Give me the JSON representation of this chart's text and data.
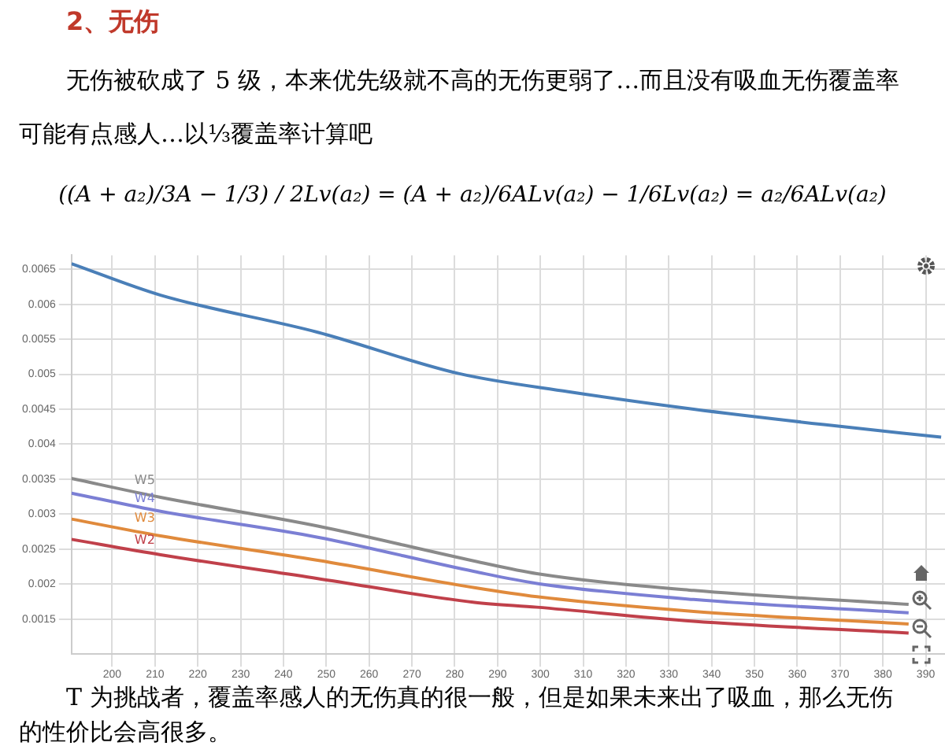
{
  "chart_data": {
    "type": "line",
    "title": "2、无伤",
    "annotations": [
      "无伤被砍成了 5 级，本来优先级就不高的无伤更弱了…而且没有吸血无伤覆盖率可能有点感人…以⅓覆盖率计算吧",
      "((A + a₂)/3A − 1/3) / 2Lv(a₂) = (A + a₂)/6ALv(a₂) − 1/6Lv(a₂) = a₂/6ALv(a₂)",
      "T 为挑战者，覆盖率感人的无伤真的很一般，但是如果未来出了吸血，那么无伤的性价比会高很多。"
    ],
    "x": [
      190.5,
      211.3,
      248.0,
      284.6,
      299.2,
      335.8,
      386.0
    ],
    "series": [
      {
        "color": "#4a7fb8",
        "x": [
          190.5,
          211.3,
          248.0,
          280.9,
          306.5,
          335.8,
          366.2,
          393.6
        ],
        "values": [
          0.00658,
          0.00613,
          0.0056,
          0.00501,
          0.00475,
          0.0045,
          0.00428,
          0.0041
        ]
      },
      {
        "name": "W5",
        "color": "#8a8a8a",
        "values": [
          0.00351,
          0.00324,
          0.00283,
          0.00233,
          0.00215,
          0.00191,
          0.00171
        ]
      },
      {
        "name": "W4",
        "color": "#7b7fd4",
        "values": [
          0.0033,
          0.00304,
          0.00267,
          0.00218,
          0.00201,
          0.00178,
          0.00159
        ]
      },
      {
        "name": "W3",
        "color": "#e08a3c",
        "values": [
          0.00293,
          0.00269,
          0.00234,
          0.00195,
          0.00182,
          0.00161,
          0.00143
        ]
      },
      {
        "name": "W2",
        "color": "#c0404a",
        "values": [
          0.00264,
          0.00242,
          0.00208,
          0.00174,
          0.00167,
          0.00147,
          0.0013
        ]
      }
    ],
    "xlim": [
      190.5,
      394.5
    ],
    "ylim": [
      0.001,
      0.0067
    ],
    "xticks": [
      200,
      210,
      220,
      230,
      240,
      250,
      260,
      270,
      280,
      290,
      300,
      310,
      320,
      330,
      340,
      350,
      360,
      370,
      380,
      390
    ],
    "yticks": [
      0.0015,
      0.002,
      0.0025,
      0.003,
      0.0035,
      0.004,
      0.0045,
      0.005,
      0.0055,
      0.006,
      0.0065
    ],
    "grid": true,
    "legend": false,
    "marker": "none",
    "line_style": "solid"
  }
}
